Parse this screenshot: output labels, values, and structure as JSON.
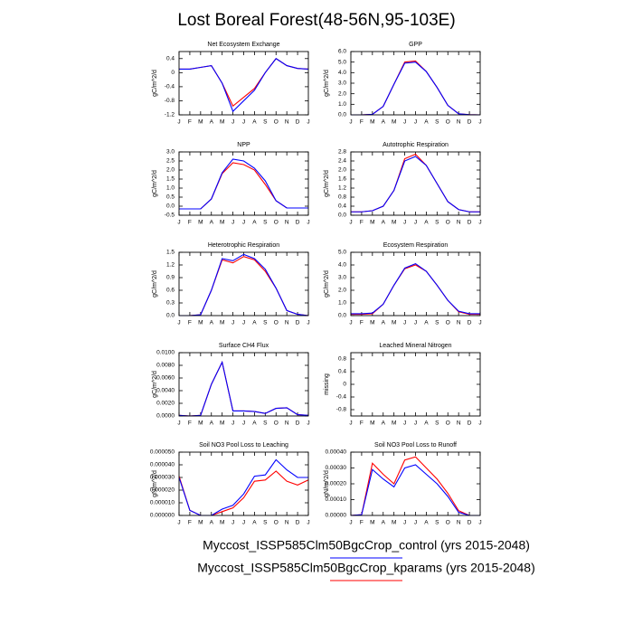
{
  "title": "Lost Boreal Forest(48-56N,95-103E)",
  "legend": [
    {
      "name": "Myccost_ISSP585Clm50BgcCrop_control (yrs 2015-2048)",
      "color": "#0000ff"
    },
    {
      "name": "Myccost_ISSP585Clm50BgcCrop_kparams (yrs 2015-2048)",
      "color": "#ff0000"
    }
  ],
  "chart_data": [
    {
      "type": "line",
      "title": "Net Ecosystem Exchange",
      "y_label": "gC/m^2/d",
      "categories": [
        "J",
        "F",
        "M",
        "A",
        "M",
        "J",
        "J",
        "A",
        "S",
        "O",
        "N",
        "D",
        "J"
      ],
      "ylim": [
        -1.2,
        0.6
      ],
      "yticks": [
        -1.2,
        -0.8,
        -0.4,
        0,
        0.4
      ],
      "series": [
        {
          "color": "#ff0000",
          "values": [
            0.1,
            0.1,
            0.15,
            0.2,
            -0.3,
            -0.95,
            -0.7,
            -0.45,
            0.0,
            0.4,
            0.2,
            0.12,
            0.1
          ]
        },
        {
          "color": "#0000ff",
          "values": [
            0.1,
            0.1,
            0.15,
            0.2,
            -0.3,
            -1.1,
            -0.8,
            -0.5,
            0.0,
            0.4,
            0.2,
            0.12,
            0.1
          ]
        }
      ]
    },
    {
      "type": "line",
      "title": "GPP",
      "y_label": "gC/m^2/d",
      "categories": [
        "J",
        "F",
        "M",
        "A",
        "M",
        "J",
        "J",
        "A",
        "S",
        "O",
        "N",
        "D",
        "J"
      ],
      "ylim": [
        0,
        6
      ],
      "yticks": [
        {
          "value": 0,
          "label": "0.0"
        },
        {
          "value": 1,
          "label": "1.0"
        },
        {
          "value": 2,
          "label": "2.0"
        },
        {
          "value": 3,
          "label": "3.0"
        },
        {
          "value": 4,
          "label": "4.0"
        },
        {
          "value": 5,
          "label": "5.0"
        },
        {
          "value": 6,
          "label": "6.0"
        }
      ],
      "series": [
        {
          "color": "#ff0000",
          "values": [
            0,
            0,
            0.05,
            0.8,
            2.9,
            5.0,
            5.1,
            4.1,
            2.6,
            0.9,
            0.1,
            0.02,
            0
          ]
        },
        {
          "color": "#0000ff",
          "values": [
            0,
            0,
            0.05,
            0.8,
            2.9,
            4.9,
            5.0,
            4.1,
            2.6,
            0.9,
            0.1,
            0.02,
            0
          ]
        }
      ]
    },
    {
      "type": "line",
      "title": "NPP",
      "y_label": "gC/m^2/d",
      "categories": [
        "J",
        "F",
        "M",
        "A",
        "M",
        "J",
        "J",
        "A",
        "S",
        "O",
        "N",
        "D",
        "J"
      ],
      "ylim": [
        -0.5,
        3.0
      ],
      "yticks": [
        -0.5,
        {
          "value": 0,
          "label": "0.0"
        },
        0.5,
        {
          "value": 1,
          "label": "1.0"
        },
        1.5,
        {
          "value": 2,
          "label": "2.0"
        },
        2.5,
        {
          "value": 3,
          "label": "3.0"
        }
      ],
      "series": [
        {
          "color": "#ff0000",
          "values": [
            -0.15,
            -0.15,
            -0.15,
            0.4,
            1.8,
            2.4,
            2.3,
            2.0,
            1.2,
            0.3,
            -0.1,
            -0.1,
            -0.1
          ]
        },
        {
          "color": "#0000ff",
          "values": [
            -0.15,
            -0.15,
            -0.15,
            0.4,
            1.85,
            2.6,
            2.5,
            2.1,
            1.4,
            0.3,
            -0.1,
            -0.1,
            -0.1
          ]
        }
      ]
    },
    {
      "type": "line",
      "title": "Autotrophic Respiration",
      "y_label": "gC/m^2/d",
      "categories": [
        "J",
        "F",
        "M",
        "A",
        "M",
        "J",
        "J",
        "A",
        "S",
        "O",
        "N",
        "D",
        "J"
      ],
      "ylim": [
        0,
        2.8
      ],
      "yticks": [
        {
          "value": 0,
          "label": "0.0"
        },
        0.4,
        0.8,
        1.2,
        1.6,
        {
          "value": 2,
          "label": "2.0"
        },
        2.4,
        2.8
      ],
      "series": [
        {
          "color": "#ff0000",
          "values": [
            0.15,
            0.15,
            0.2,
            0.4,
            1.1,
            2.5,
            2.7,
            2.2,
            1.4,
            0.6,
            0.25,
            0.15,
            0.15
          ]
        },
        {
          "color": "#0000ff",
          "values": [
            0.15,
            0.15,
            0.2,
            0.4,
            1.1,
            2.4,
            2.6,
            2.2,
            1.4,
            0.6,
            0.25,
            0.15,
            0.15
          ]
        }
      ]
    },
    {
      "type": "line",
      "title": "Heterotrophic Respiration",
      "y_label": "gC/m^2/d",
      "categories": [
        "J",
        "F",
        "M",
        "A",
        "M",
        "J",
        "J",
        "A",
        "S",
        "O",
        "N",
        "D",
        "J"
      ],
      "ylim": [
        0,
        1.5
      ],
      "yticks": [
        {
          "value": 0,
          "label": "0.0"
        },
        0.3,
        0.6,
        0.9,
        1.2,
        1.5
      ],
      "series": [
        {
          "color": "#ff0000",
          "values": [
            0,
            0,
            0.02,
            0.6,
            1.32,
            1.25,
            1.4,
            1.32,
            1.05,
            0.65,
            0.12,
            0.03,
            0
          ]
        },
        {
          "color": "#0000ff",
          "values": [
            0,
            0,
            0.02,
            0.6,
            1.35,
            1.3,
            1.45,
            1.35,
            1.1,
            0.65,
            0.12,
            0.03,
            0
          ]
        }
      ]
    },
    {
      "type": "line",
      "title": "Ecosystem Respiration",
      "y_label": "gC/m^2/d",
      "categories": [
        "J",
        "F",
        "M",
        "A",
        "M",
        "J",
        "J",
        "A",
        "S",
        "O",
        "N",
        "D",
        "J"
      ],
      "ylim": [
        0,
        5
      ],
      "yticks": [
        {
          "value": 0,
          "label": "0.0"
        },
        {
          "value": 1,
          "label": "1.0"
        },
        {
          "value": 2,
          "label": "2.0"
        },
        {
          "value": 3,
          "label": "3.0"
        },
        {
          "value": 4,
          "label": "4.0"
        },
        {
          "value": 5,
          "label": "5.0"
        }
      ],
      "series": [
        {
          "color": "#ff0000",
          "values": [
            0.1,
            0.1,
            0.15,
            0.9,
            2.4,
            3.7,
            4.0,
            3.5,
            2.4,
            1.2,
            0.3,
            0.1,
            0.1
          ]
        },
        {
          "color": "#0000ff",
          "values": [
            0.15,
            0.15,
            0.2,
            0.9,
            2.4,
            3.75,
            4.1,
            3.5,
            2.4,
            1.2,
            0.35,
            0.15,
            0.15
          ]
        }
      ]
    },
    {
      "type": "line",
      "title": "Surface CH4 Flux",
      "y_label": "gC/m^2/d",
      "categories": [
        "J",
        "F",
        "M",
        "A",
        "M",
        "J",
        "J",
        "A",
        "S",
        "O",
        "N",
        "D",
        "J"
      ],
      "ylim": [
        0,
        0.01
      ],
      "yticks": [
        {
          "value": 0,
          "label": "0.0000"
        },
        {
          "value": 0.002,
          "label": "0.0020"
        },
        {
          "value": 0.004,
          "label": "0.0040"
        },
        {
          "value": 0.006,
          "label": "0.0060"
        },
        {
          "value": 0.008,
          "label": "0.0080"
        },
        {
          "value": 0.01,
          "label": "0.0100"
        }
      ],
      "series": [
        {
          "color": "#ff0000",
          "values": [
            0.0001,
            0,
            0.0001,
            0.005,
            0.0085,
            0.0008,
            0.0008,
            0.0007,
            0.0004,
            0.0012,
            0.0013,
            0.0002,
            0.0001
          ]
        },
        {
          "color": "#0000ff",
          "values": [
            0.0001,
            0,
            0.0001,
            0.005,
            0.0085,
            0.0008,
            0.0008,
            0.0007,
            0.0004,
            0.0012,
            0.0013,
            0.0002,
            0.0001
          ]
        }
      ]
    },
    {
      "type": "line",
      "title": "Leached Mineral Nitrogen",
      "y_label": "missing",
      "categories": [
        "J",
        "F",
        "M",
        "A",
        "M",
        "J",
        "J",
        "A",
        "S",
        "O",
        "N",
        "D",
        "J"
      ],
      "ylim": [
        -1,
        1
      ],
      "yticks": [
        -0.8,
        -0.4,
        0,
        0.4,
        0.8
      ],
      "series": []
    },
    {
      "type": "line",
      "title": "Soil NO3 Pool Loss to Leaching",
      "y_label": "gN/m^2/d",
      "categories": [
        "J",
        "F",
        "M",
        "A",
        "M",
        "J",
        "J",
        "A",
        "S",
        "O",
        "N",
        "D",
        "J"
      ],
      "ylim": [
        0,
        5e-05
      ],
      "yticks": [
        {
          "value": 0,
          "label": "0.000000"
        },
        {
          "value": 1e-05,
          "label": "0.000010"
        },
        {
          "value": 2e-05,
          "label": "0.000020"
        },
        {
          "value": 3e-05,
          "label": "0.000030"
        },
        {
          "value": 4e-05,
          "label": "0.000040"
        },
        {
          "value": 5e-05,
          "label": "0.000050"
        }
      ],
      "series": [
        {
          "color": "#ff0000",
          "values": [
            3.1e-05,
            4e-06,
            0,
            0,
            3e-06,
            6e-06,
            1.4e-05,
            2.7e-05,
            2.8e-05,
            3.5e-05,
            2.7e-05,
            2.4e-05,
            2.8e-05
          ]
        },
        {
          "color": "#0000ff",
          "values": [
            3e-05,
            4e-06,
            0,
            0,
            5e-06,
            8e-06,
            1.7e-05,
            3.1e-05,
            3.2e-05,
            4.4e-05,
            3.6e-05,
            3e-05,
            3e-05
          ]
        }
      ]
    },
    {
      "type": "line",
      "title": "Soil NO3 Pool Loss to Runoff",
      "y_label": "gN/m^2/d",
      "categories": [
        "J",
        "F",
        "M",
        "A",
        "M",
        "J",
        "J",
        "A",
        "S",
        "O",
        "N",
        "D",
        "J"
      ],
      "ylim": [
        0,
        0.0004
      ],
      "yticks": [
        {
          "value": 0,
          "label": "0.00000"
        },
        {
          "value": 0.0001,
          "label": "0.00010"
        },
        {
          "value": 0.0002,
          "label": "0.00020"
        },
        {
          "value": 0.0003,
          "label": "0.00030"
        },
        {
          "value": 0.0004,
          "label": "0.00040"
        }
      ],
      "series": [
        {
          "color": "#ff0000",
          "values": [
            0,
            5e-06,
            0.00033,
            0.00026,
            0.0002,
            0.00035,
            0.00037,
            0.0003,
            0.00023,
            0.00014,
            3e-05,
            0,
            0
          ]
        },
        {
          "color": "#0000ff",
          "values": [
            0,
            5e-06,
            0.00029,
            0.00023,
            0.00018,
            0.0003,
            0.00032,
            0.00026,
            0.0002,
            0.00012,
            2e-05,
            0,
            0
          ]
        }
      ]
    }
  ]
}
